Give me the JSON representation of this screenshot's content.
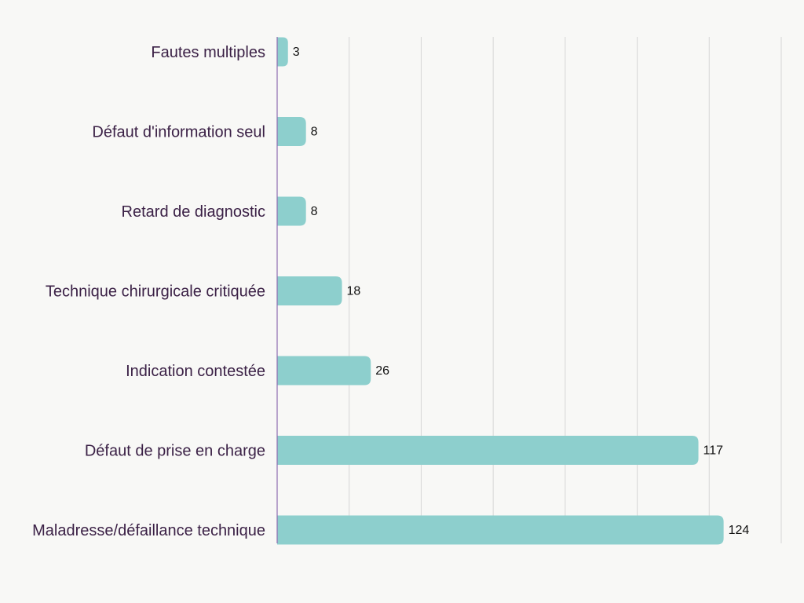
{
  "chart_data": {
    "type": "bar",
    "orientation": "horizontal",
    "categories": [
      "Fautes multiples",
      "Défaut d'information seul",
      "Retard de diagnostic",
      "Technique chirurgicale critiquée",
      "Indication contestée",
      "Défaut de prise en charge",
      "Maladresse/défaillance technique"
    ],
    "values": [
      3,
      8,
      8,
      18,
      26,
      117,
      124
    ],
    "value_labels": [
      "3",
      "8",
      "8",
      "18",
      "26",
      "117",
      "124"
    ],
    "xlim": [
      0,
      140
    ],
    "grid": true,
    "legend": "none",
    "colors": {
      "bar": "#8dcfcd",
      "grid": "#d6d6d6",
      "axis": "#8e6bb0",
      "category_text": "#3b2146",
      "value_text": "#111111",
      "background": "#f8f8f6"
    }
  }
}
